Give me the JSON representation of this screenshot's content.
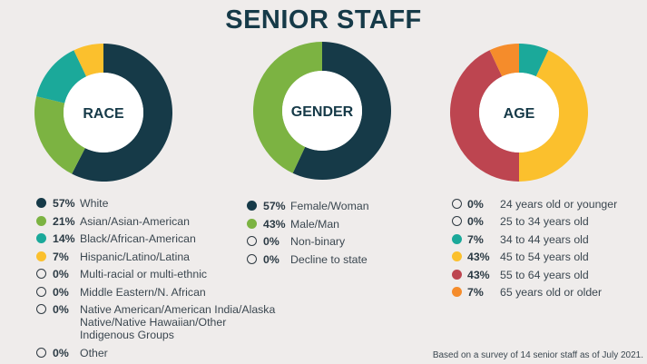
{
  "title": "SENIOR STAFF",
  "footnote": "Based on a survey of 14 senior staff as of July 2021.",
  "colors": {
    "navy": "#163a48",
    "green": "#7cb342",
    "teal": "#1ba99a",
    "yellow": "#fbc02d",
    "red": "#bd4550",
    "orange": "#f58c2b"
  },
  "chart_data": [
    {
      "type": "pie",
      "title": "RACE",
      "categories": [
        "White",
        "Asian/Asian-American",
        "Black/African-American",
        "Hispanic/Latino/Latina",
        "Multi-racial or multi-ethnic",
        "Middle Eastern/N. African",
        "Native American/American India/Alaska Native/Native Hawaiian/Other Indigenous Groups",
        "Other"
      ],
      "values": [
        57,
        21,
        14,
        7,
        0,
        0,
        0,
        0
      ],
      "labels": [
        "57%",
        "21%",
        "14%",
        "7%",
        "0%",
        "0%",
        "0%",
        "0%"
      ],
      "colors": [
        "#163a48",
        "#7cb342",
        "#1ba99a",
        "#fbc02d",
        null,
        null,
        null,
        null
      ]
    },
    {
      "type": "pie",
      "title": "GENDER",
      "categories": [
        "Female/Woman",
        "Male/Man",
        "Non-binary",
        "Decline to state"
      ],
      "values": [
        57,
        43,
        0,
        0
      ],
      "labels": [
        "57%",
        "43%",
        "0%",
        "0%"
      ],
      "colors": [
        "#163a48",
        "#7cb342",
        null,
        null
      ]
    },
    {
      "type": "pie",
      "title": "AGE",
      "categories": [
        "24 years old or younger",
        "25 to 34 years old",
        "34 to 44 years old",
        "45 to 54 years old",
        "55 to 64 years old",
        "65 years old or older"
      ],
      "values": [
        0,
        0,
        7,
        43,
        43,
        7
      ],
      "labels": [
        "0%",
        "0%",
        "7%",
        "43%",
        "43%",
        "7%"
      ],
      "colors": [
        null,
        null,
        "#1ba99a",
        "#fbc02d",
        "#bd4550",
        "#f58c2b"
      ]
    }
  ]
}
